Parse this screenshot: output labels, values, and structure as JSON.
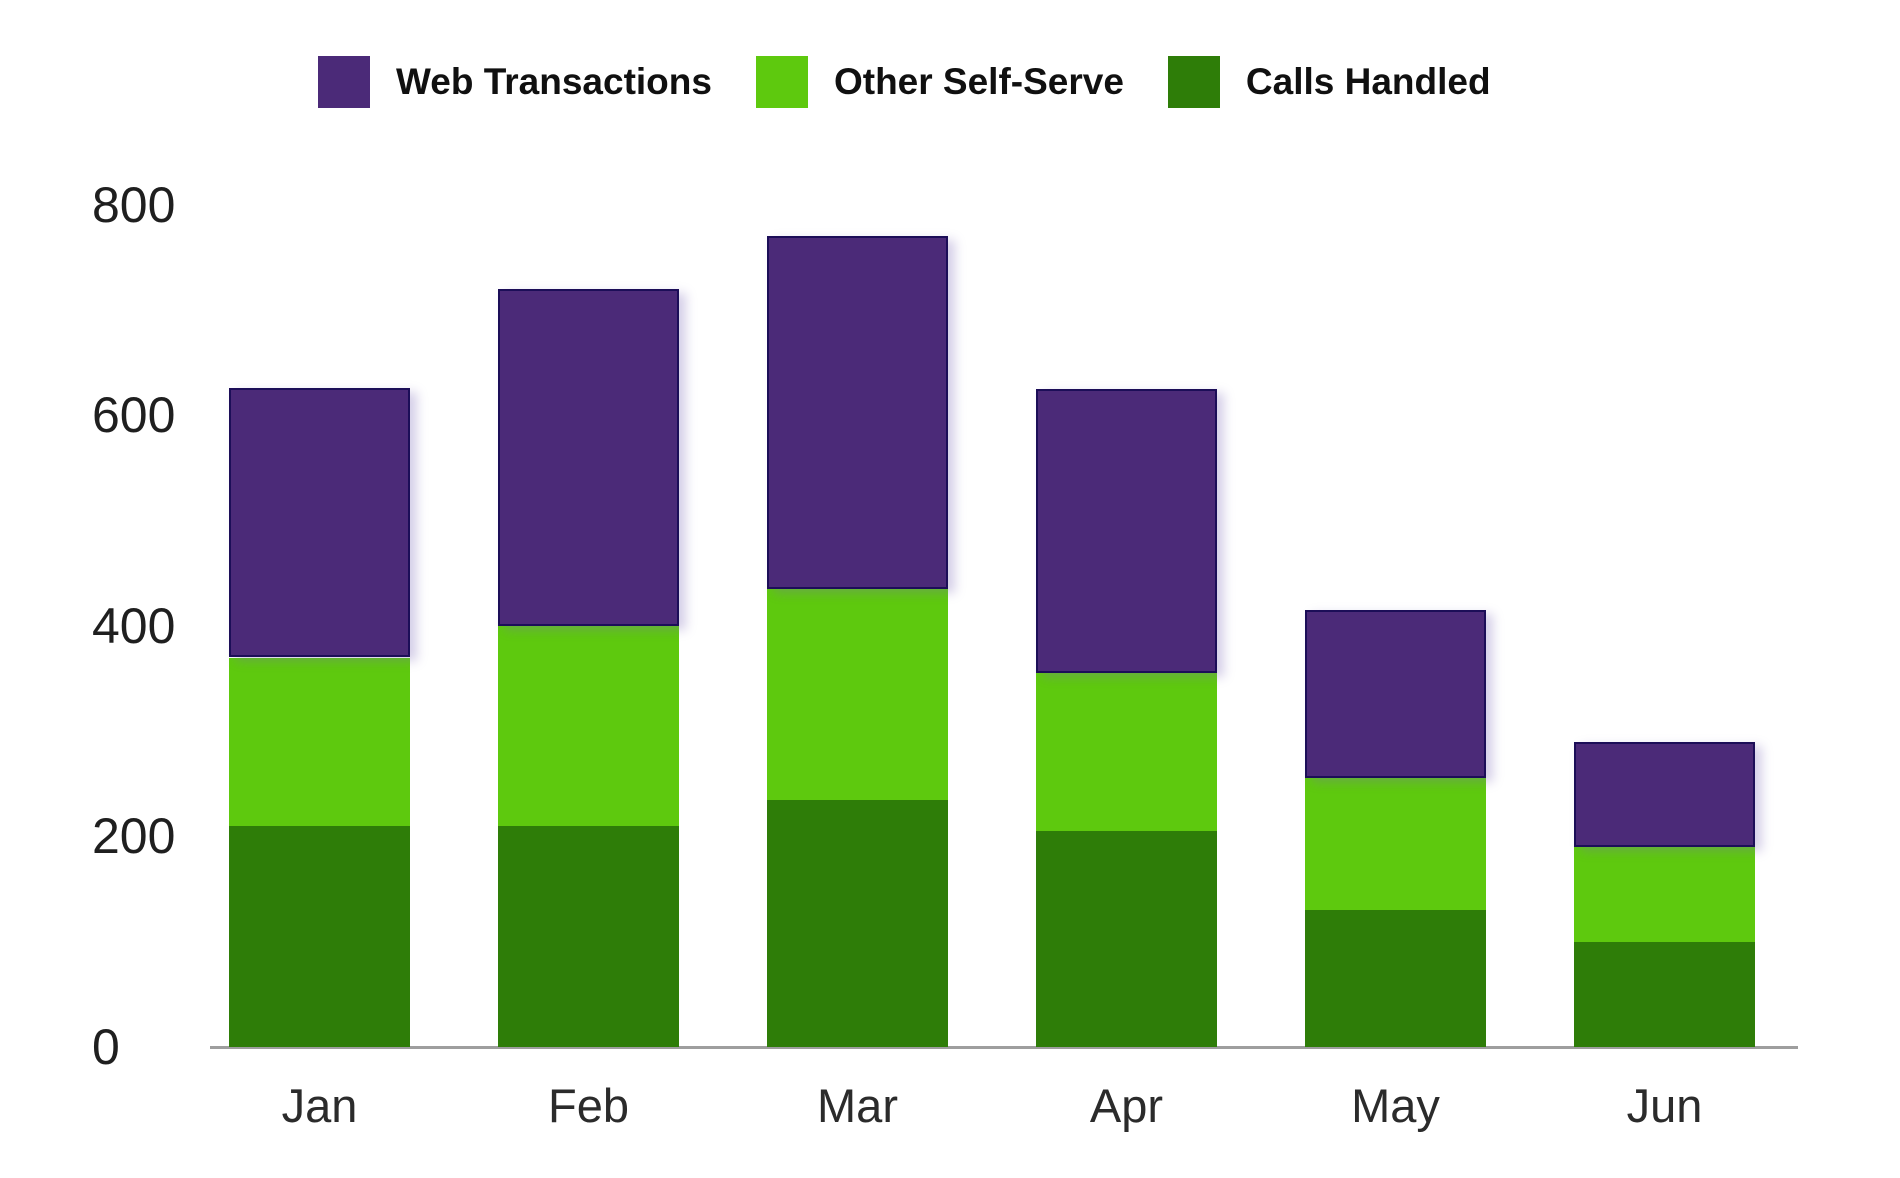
{
  "legend": {
    "items": [
      {
        "label": "Web Transactions",
        "color": "#4b2a78"
      },
      {
        "label": "Other Self-Serve",
        "color": "#5ec90e"
      },
      {
        "label": "Calls Handled",
        "color": "#2e7d08"
      }
    ]
  },
  "chart_data": {
    "type": "bar",
    "stacked": true,
    "title": "",
    "xlabel": "",
    "ylabel": "",
    "categories": [
      "Jan",
      "Feb",
      "Mar",
      "Apr",
      "May",
      "Jun"
    ],
    "series": [
      {
        "name": "Calls Handled",
        "color": "#2e7d08",
        "values": [
          210,
          210,
          235,
          205,
          130,
          100
        ]
      },
      {
        "name": "Other Self-Serve",
        "color": "#5ec90e",
        "values": [
          160,
          190,
          200,
          150,
          125,
          90
        ]
      },
      {
        "name": "Web Transactions",
        "color": "#4b2a78",
        "values": [
          255,
          320,
          335,
          270,
          160,
          100
        ]
      }
    ],
    "stack_totals": [
      625,
      720,
      770,
      625,
      415,
      290
    ],
    "ylim": [
      0,
      800
    ],
    "yticks": [
      0,
      200,
      400,
      600,
      800
    ],
    "grid": false,
    "legend_position": "top",
    "axis_color": "#9e9e9e"
  }
}
